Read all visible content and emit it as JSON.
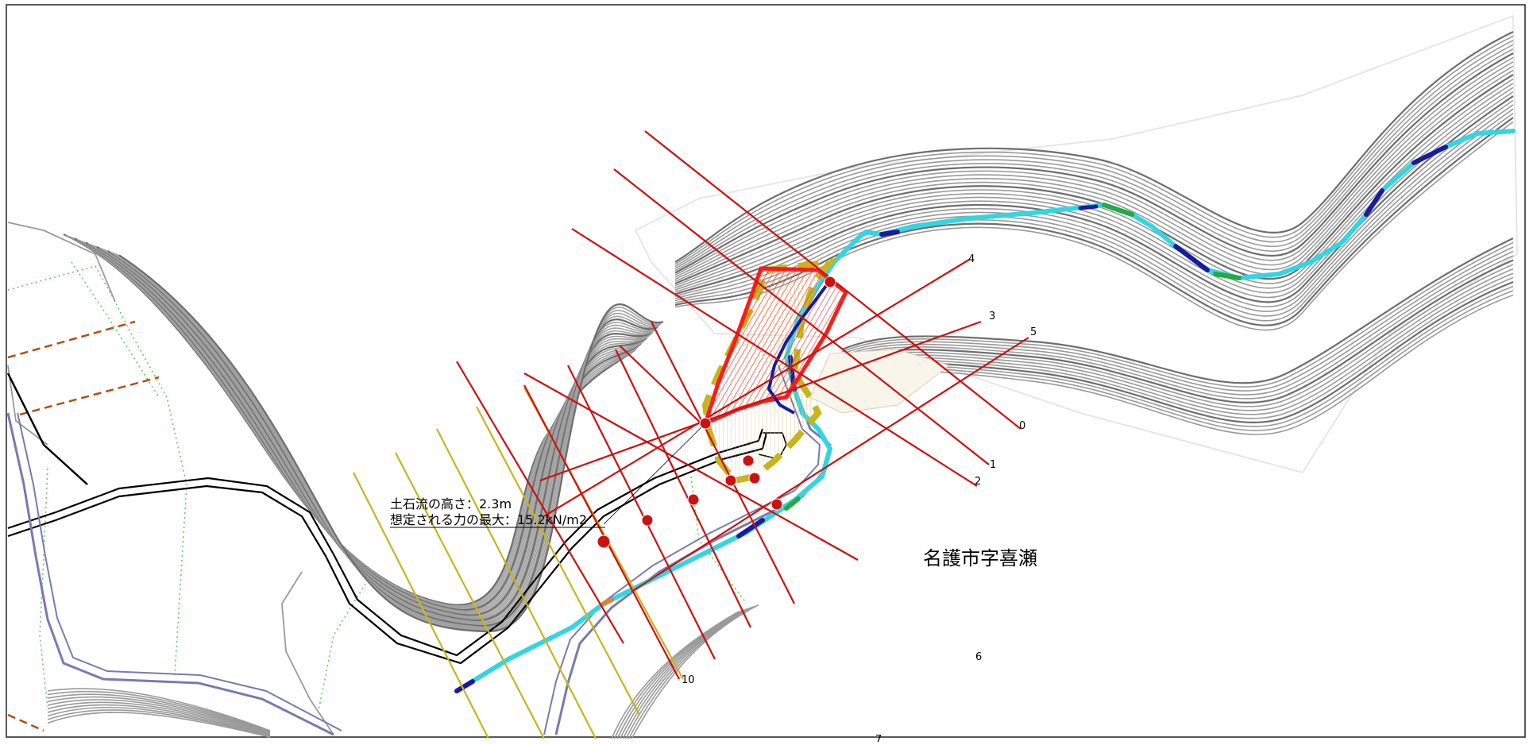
{
  "place_name": "名護市字喜瀬",
  "annotation": {
    "line1": "土石流の高さ：2.3m",
    "line2": "想定される力の最大：15.2kN/m2"
  },
  "section_labels": {
    "s0": "0",
    "s1": "1",
    "s2": "2",
    "s3": "3",
    "s4": "4",
    "s5": "5",
    "s6": "6",
    "s7": "7",
    "s10": "10"
  },
  "colors": {
    "danger_zone": "#ff1a1a",
    "warning_zone": "#c8b41e",
    "section_line": "#cc1111",
    "stream": "#33d6e0",
    "stream_deep": "#1a1aa0",
    "contour": "#8a8a8a",
    "road": "#000000",
    "river": "#7a7ab0",
    "boundary": "#b05010",
    "green_dotted": "#55cc55"
  }
}
